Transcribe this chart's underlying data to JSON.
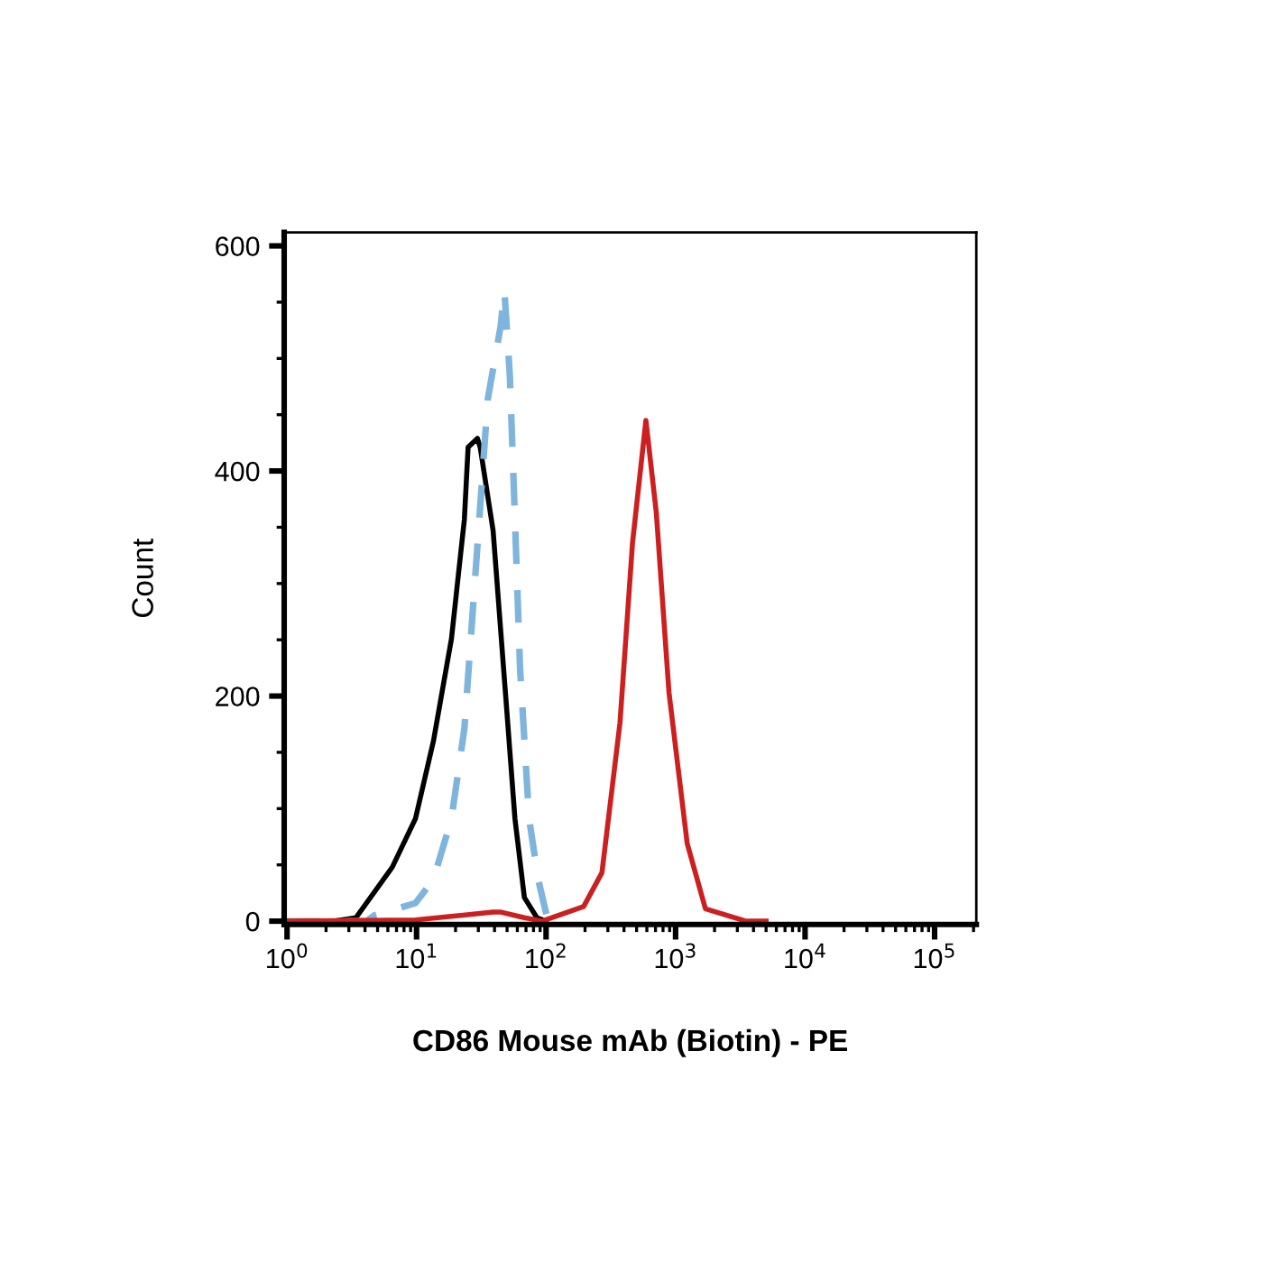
{
  "chart_data": {
    "type": "line",
    "xlabel": "CD86 Mouse mAb (Biotin) - PE",
    "ylabel": "Count",
    "log": "x",
    "xlim": [
      0.95,
      210000
    ],
    "ylim": [
      -3,
      612
    ],
    "xticks": [
      {
        "value": 1,
        "label": "10$^{0}$"
      },
      {
        "value": 10,
        "label": "10$^{1}$"
      },
      {
        "value": 100,
        "label": "10$^{2}$"
      },
      {
        "value": 1000,
        "label": "10$^{3}$"
      },
      {
        "value": 10000,
        "label": "10$^{4}$"
      },
      {
        "value": 100000,
        "label": "10$^{5}$"
      }
    ],
    "yticks": [
      0,
      200,
      400,
      600
    ],
    "grid": false,
    "legend": false,
    "series": [
      {
        "color": "#000000",
        "line_style": "solid",
        "x": [
          1,
          2.3,
          3.4,
          6.5,
          9.8,
          13.5,
          18.6,
          23.4,
          25,
          29.5,
          31,
          39,
          49,
          57.5,
          68,
          85,
          100
        ],
        "values": [
          0,
          0,
          3,
          48,
          91,
          160,
          251,
          357,
          421,
          429,
          421,
          347,
          197,
          91,
          21,
          3,
          0
        ]
      },
      {
        "color": "#7fb4dc",
        "line_style": "dashed",
        "x": [
          1,
          4.1,
          4.7,
          9.8,
          13.5,
          18.6,
          23.4,
          28.3,
          35.5,
          44.5,
          47.7,
          52.5,
          57.5,
          63,
          74,
          87,
          102
        ],
        "values": [
          0,
          0,
          5,
          16,
          37,
          91,
          171,
          304,
          464,
          528,
          560,
          485,
          357,
          224,
          91,
          37,
          3
        ]
      },
      {
        "color": "#cc1f1f",
        "line_style": "solid",
        "x": [
          1,
          9.8,
          39,
          45,
          68,
          93,
          195,
          270,
          372,
          465,
          590,
          710,
          890,
          1230,
          1700,
          3500,
          5000
        ],
        "values": [
          0,
          1,
          8,
          8,
          3,
          0,
          13,
          43,
          176,
          336,
          445,
          363,
          203,
          69,
          11,
          0,
          0
        ]
      }
    ]
  }
}
